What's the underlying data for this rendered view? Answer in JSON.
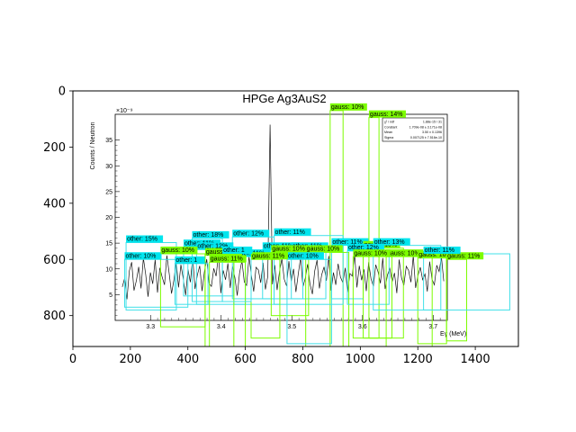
{
  "colors": {
    "background": "#ffffff",
    "axes_frame": "#000000",
    "inner_plot_bg": "#ffffff",
    "histogram_line": "#111111",
    "gauss_box": "#7CFC00",
    "gauss_label_bg": "#7CFC00",
    "other_box": "#40E0E8",
    "other_label_bg": "#00E5EE"
  },
  "chart_data": {
    "type": "line",
    "title": "HPGe Ag3AuS2",
    "outer_axes": {
      "xlim": [
        0,
        1550
      ],
      "ylim": [
        910,
        0
      ],
      "x_ticks": [
        0,
        200,
        400,
        600,
        800,
        1000,
        1200,
        1400
      ],
      "y_ticks": [
        0,
        200,
        400,
        600,
        800
      ],
      "grid": false
    },
    "inner_plot": {
      "title": "HPGe Ag3AuS2",
      "ylabel": "Counts / Neutron",
      "xlabel": "Eγ (MeV)",
      "y_multiplier": "×10⁻⁹",
      "xlim": [
        3.25,
        3.72
      ],
      "ylim": [
        0,
        40
      ],
      "x_tick_labels": [
        "3.3",
        "3.4",
        "3.5",
        "3.6",
        "3.7"
      ],
      "y_tick_labels": [
        "5",
        "10",
        "15",
        "20",
        "25",
        "30",
        "35"
      ],
      "stats_box": {
        "rows": [
          {
            "name": "χ² / ndf",
            "value": "1.88e-15 / 31"
          },
          {
            "name": "Constant",
            "value": "1.709e-08 ± 3.171e-08"
          },
          {
            "name": "Mean",
            "value": "3.50 ± 0.1396"
          },
          {
            "name": "Sigma",
            "value": "0.007125 ± 7.516e-10"
          }
        ]
      },
      "spectrum": {
        "x_start": 3.26,
        "x_end": 3.715,
        "y": [
          6.5,
          8.2,
          4.1,
          9.6,
          11.3,
          5.8,
          7.7,
          10.4,
          6.2,
          12.1,
          8.9,
          4.6,
          9.3,
          7.1,
          11.8,
          5.4,
          10.2,
          8.4,
          6.9,
          12.6,
          9.1,
          5.2,
          7.8,
          11.4,
          6.4,
          10.8,
          8.1,
          4.9,
          9.9,
          7.4,
          12.3,
          6.1,
          8.8,
          10.6,
          5.7,
          9.4,
          11.9,
          7.2,
          6.6,
          10.1,
          8.6,
          12.8,
          5.3,
          9.7,
          7.9,
          11.1,
          6.3,
          10.5,
          8.3,
          4.8,
          9.2,
          11.6,
          7.5,
          6.8,
          12.4,
          8.7,
          5.6,
          10.3,
          9.8,
          7.3,
          11.2,
          6.0,
          8.5,
          38.0,
          7.0,
          10.7,
          5.9,
          9.5,
          12.0,
          8.0,
          6.7,
          11.5,
          7.6,
          10.0,
          5.5,
          9.0,
          12.2,
          6.5,
          8.2,
          10.9,
          7.1,
          5.1,
          9.6,
          11.7,
          6.2,
          8.9,
          10.4,
          7.7,
          12.5,
          5.8,
          9.3,
          6.9,
          11.0,
          8.4,
          7.3,
          10.2,
          5.4,
          9.1,
          8.6,
          12.9,
          6.4,
          10.6,
          7.8,
          9.9,
          5.7,
          11.3,
          8.1,
          6.6,
          10.8,
          9.4,
          7.2,
          12.1,
          6.1,
          8.8,
          10.1,
          7.5,
          9.2,
          5.3,
          11.8,
          8.3,
          6.8,
          10.5,
          9.7,
          7.4,
          12.6,
          6.3,
          8.7,
          10.3,
          7.9,
          9.0,
          5.6,
          11.4,
          8.0,
          6.9,
          10.7,
          9.5,
          12.3,
          7.6
        ]
      }
    },
    "boxes": [
      {
        "label": "gauss: 10%",
        "cls": "gauss",
        "x1": 895,
        "y1": 70,
        "x2": 940,
        "y2": 910
      },
      {
        "label": "gauss: 14%",
        "cls": "gauss",
        "x1": 1030,
        "y1": 95,
        "x2": 1065,
        "y2": 880
      },
      {
        "label": "other: 15%",
        "cls": "other",
        "x1": 185,
        "y1": 540,
        "x2": 360,
        "y2": 780
      },
      {
        "label": "other: 18%",
        "cls": "other",
        "x1": 415,
        "y1": 525,
        "x2": 520,
        "y2": 750
      },
      {
        "label": "other: 11%",
        "cls": "other",
        "x1": 385,
        "y1": 555,
        "x2": 560,
        "y2": 730
      },
      {
        "label": "other: 12%",
        "cls": "other",
        "x1": 555,
        "y1": 520,
        "x2": 700,
        "y2": 740
      },
      {
        "label": "other: 11%",
        "cls": "other",
        "x1": 700,
        "y1": 515,
        "x2": 940,
        "y2": 760
      },
      {
        "label": "other: 11%",
        "cls": "other",
        "x1": 900,
        "y1": 550,
        "x2": 1010,
        "y2": 740
      },
      {
        "label": "gauss: 10%",
        "cls": "gauss",
        "x1": 1010,
        "y1": 560,
        "x2": 1150,
        "y2": 880
      },
      {
        "label": "other: 11%",
        "cls": "other",
        "x1": 560,
        "y1": 590,
        "x2": 720,
        "y2": 760
      },
      {
        "label": "other: 12%",
        "cls": "other",
        "x1": 430,
        "y1": 565,
        "x2": 600,
        "y2": 760
      },
      {
        "label": "other: 10%",
        "cls": "other",
        "x1": 180,
        "y1": 600,
        "x2": 400,
        "y2": 770
      },
      {
        "label": "gauss: 10%",
        "cls": "gauss",
        "x1": 305,
        "y1": 580,
        "x2": 460,
        "y2": 840
      },
      {
        "label": "gauss: 10%",
        "cls": "gauss",
        "x1": 460,
        "y1": 585,
        "x2": 560,
        "y2": 910
      },
      {
        "label": "other: 11%",
        "cls": "other",
        "x1": 660,
        "y1": 565,
        "x2": 800,
        "y2": 740
      },
      {
        "label": "other: 11%",
        "cls": "other",
        "x1": 760,
        "y1": 565,
        "x2": 880,
        "y2": 740
      },
      {
        "label": "gauss: 10%",
        "cls": "gauss",
        "x1": 690,
        "y1": 575,
        "x2": 820,
        "y2": 800
      },
      {
        "label": "gauss: 10%",
        "cls": "gauss",
        "x1": 810,
        "y1": 575,
        "x2": 960,
        "y2": 910
      },
      {
        "label": "other: 12%",
        "cls": "other",
        "x1": 955,
        "y1": 570,
        "x2": 1100,
        "y2": 760
      },
      {
        "label": "gauss: 10%",
        "cls": "gauss",
        "x1": 1090,
        "y1": 590,
        "x2": 1250,
        "y2": 910
      },
      {
        "label": "gauss: 10%",
        "cls": "gauss",
        "x1": 1200,
        "y1": 595,
        "x2": 1300,
        "y2": 900
      },
      {
        "label": "gauss: 10%",
        "cls": "gauss",
        "x1": 975,
        "y1": 590,
        "x2": 1110,
        "y2": 880
      },
      {
        "label": "gauss: 11%",
        "cls": "gauss",
        "x1": 1300,
        "y1": 600,
        "x2": 1370,
        "y2": 890
      },
      {
        "label": "other: 11%",
        "cls": "other",
        "x1": 1220,
        "y1": 580,
        "x2": 1520,
        "y2": 780
      },
      {
        "label": "other: 13%",
        "cls": "other",
        "x1": 1045,
        "y1": 550,
        "x2": 1280,
        "y2": 780
      },
      {
        "label": "other: 10%",
        "cls": "other",
        "x1": 745,
        "y1": 600,
        "x2": 900,
        "y2": 900
      },
      {
        "label": "other: 1",
        "cls": "other",
        "x1": 355,
        "y1": 615,
        "x2": 470,
        "y2": 760
      },
      {
        "label": "gauss: 11%",
        "cls": "gauss",
        "x1": 475,
        "y1": 610,
        "x2": 600,
        "y2": 910
      },
      {
        "label": "gauss: 11%",
        "cls": "gauss",
        "x1": 620,
        "y1": 600,
        "x2": 720,
        "y2": 880
      },
      {
        "label": "other: 1",
        "cls": "other",
        "x1": 520,
        "y1": 580,
        "x2": 620,
        "y2": 750
      }
    ]
  }
}
